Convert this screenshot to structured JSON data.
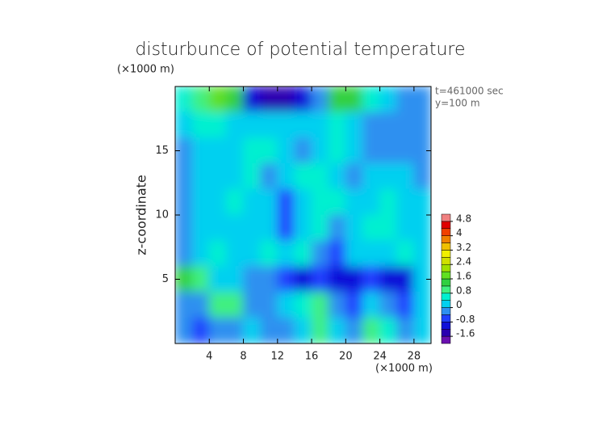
{
  "chart_data": {
    "type": "contour",
    "title": "disturbunce of potential temperature",
    "y_unit": "(×1000 m)",
    "x_unit": "(×1000 m)",
    "ylabel": "z-coordinate",
    "annotations": [
      "t=461000 sec",
      "y=100 m"
    ],
    "xlim": [
      0,
      30
    ],
    "ylim": [
      0,
      20
    ],
    "xticks": [
      4,
      8,
      12,
      16,
      20,
      24,
      28
    ],
    "yticks": [
      5,
      10,
      15
    ],
    "x": [
      1,
      3,
      5,
      7,
      9,
      11,
      13,
      15,
      17,
      19,
      21,
      23,
      25,
      27,
      29
    ],
    "y": [
      19,
      17,
      15,
      13,
      11,
      9,
      7,
      5,
      3,
      1
    ],
    "z": [
      [
        0.4,
        0.8,
        1.6,
        1.2,
        -1.2,
        -1.6,
        -1.6,
        -1.2,
        -0.4,
        1.2,
        1.4,
        0.4,
        0,
        -0.4,
        -0.4
      ],
      [
        0,
        0.4,
        0.4,
        0,
        0,
        0.2,
        0,
        0,
        0.2,
        0.4,
        0,
        -0.4,
        -0.4,
        -0.4,
        -0.4
      ],
      [
        -0.4,
        0,
        0.2,
        0.2,
        0.4,
        0.4,
        0,
        -0.4,
        0,
        0.4,
        0.2,
        -0.4,
        -0.4,
        -0.4,
        -0.2
      ],
      [
        -0.4,
        0,
        0.2,
        0,
        0.4,
        -0.4,
        0.2,
        0.4,
        0.4,
        0,
        -0.4,
        0,
        0.2,
        0,
        -0.4
      ],
      [
        -0.4,
        0,
        0.2,
        0.4,
        0.2,
        0,
        -0.8,
        0,
        0.4,
        0.4,
        0,
        0.2,
        0.4,
        0.2,
        0
      ],
      [
        -0.4,
        0,
        0.2,
        0.2,
        0,
        0.2,
        -0.8,
        0.2,
        0.4,
        -0.4,
        0.2,
        0.4,
        0.4,
        0.2,
        0
      ],
      [
        -0.2,
        0.2,
        0.4,
        0,
        0,
        0.4,
        0,
        0.4,
        -0.4,
        -0.8,
        0.2,
        0,
        0.2,
        0.4,
        0.2
      ],
      [
        1.2,
        0.8,
        0.2,
        0,
        -0.4,
        -0.4,
        -0.8,
        -1.2,
        -0.8,
        -1.2,
        -1.2,
        -0.8,
        -1.2,
        -1.2,
        0.2
      ],
      [
        -0.4,
        -0.4,
        0.8,
        1.0,
        -0.4,
        -0.4,
        0,
        0.4,
        1.0,
        -0.4,
        -0.8,
        0,
        -0.4,
        -0.8,
        0
      ],
      [
        -0.4,
        -0.8,
        -0.4,
        -0.4,
        0,
        -0.4,
        -0.4,
        0,
        0.8,
        0,
        -0.4,
        0.8,
        0.4,
        -0.4,
        0
      ]
    ],
    "levels": [
      -2,
      -1.6,
      -1.2,
      -0.8,
      -0.4,
      0,
      0.4,
      0.8,
      1.2,
      1.6,
      2,
      2.4,
      2.8,
      3.2,
      3.6,
      4,
      4.4,
      4.8,
      5.2
    ],
    "colors": [
      "#6a10b0",
      "#2a00b0",
      "#1010d8",
      "#2040ff",
      "#2e90f0",
      "#00d0f0",
      "#00f0d0",
      "#40f080",
      "#30d040",
      "#60e020",
      "#a0e000",
      "#d0e000",
      "#f0f000",
      "#f0c000",
      "#f08000",
      "#f04000",
      "#e00000",
      "#f08080"
    ],
    "colorbar_ticks": [
      4.8,
      4,
      3.2,
      2.4,
      1.6,
      0.8,
      0,
      -0.8,
      -1.6
    ]
  }
}
